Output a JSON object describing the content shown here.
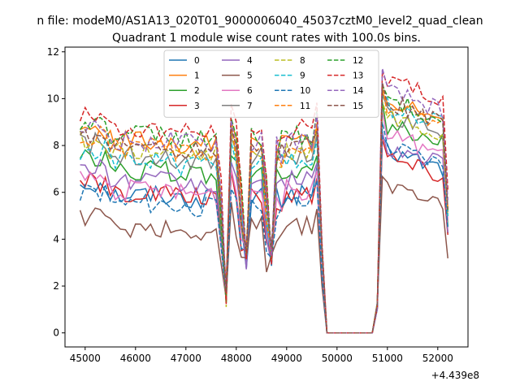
{
  "figure": {
    "suptitle": "n file: modeM0/AS1A13_020T01_9000006040_45037cztM0_level2_quad_clean",
    "title": "Quadrant 1 module wise count rates with 100.0s bins."
  },
  "chart_data": {
    "type": "line",
    "title": "Quadrant 1 module wise count rates with 100.0s bins.",
    "xlabel": "",
    "ylabel": "",
    "x_offset_label": "+4.439e8",
    "xlim": [
      44600,
      52600
    ],
    "ylim": [
      -0.6,
      12.2
    ],
    "x_ticks": [
      45000,
      46000,
      47000,
      48000,
      49000,
      50000,
      51000,
      52000
    ],
    "x_tick_labels": [
      "45000",
      "46000",
      "47000",
      "48000",
      "49000",
      "50000",
      "51000",
      "52000"
    ],
    "y_ticks": [
      0,
      2,
      4,
      6,
      8,
      10,
      12
    ],
    "y_tick_labels": [
      "0",
      "2",
      "4",
      "6",
      "8",
      "10",
      "12"
    ],
    "grid": false,
    "legend": {
      "placement": "top-center",
      "columns": 4
    },
    "time_start": 44900,
    "time_step": 100,
    "n_points": 74,
    "gap_start_index": 49,
    "gap_end_index": 58,
    "dip_indices": [
      29,
      33,
      38
    ],
    "series": [
      {
        "name": "0",
        "color": "#1f77b4",
        "dash": "solid",
        "base": 5.9,
        "post": 7.1
      },
      {
        "name": "1",
        "color": "#ff7f0e",
        "dash": "solid",
        "base": 8.2,
        "post": 9.2
      },
      {
        "name": "2",
        "color": "#2ca02c",
        "dash": "solid",
        "base": 6.9,
        "post": 8.2
      },
      {
        "name": "3",
        "color": "#d62728",
        "dash": "solid",
        "base": 5.9,
        "post": 6.8
      },
      {
        "name": "4",
        "color": "#9467bd",
        "dash": "solid",
        "base": 6.5,
        "post": 7.3
      },
      {
        "name": "5",
        "color": "#8c564b",
        "dash": "solid",
        "base": 4.5,
        "post": 5.6
      },
      {
        "name": "6",
        "color": "#e377c2",
        "dash": "solid",
        "base": 6.1,
        "post": 7.8
      },
      {
        "name": "7",
        "color": "#7f7f7f",
        "dash": "solid",
        "base": 7.6,
        "post": 8.7
      },
      {
        "name": "8",
        "color": "#bcbd22",
        "dash": "dashed",
        "base": 7.7,
        "post": 8.6
      },
      {
        "name": "9",
        "color": "#17becf",
        "dash": "dashed",
        "base": 7.3,
        "post": 9.0
      },
      {
        "name": "10",
        "color": "#1f77b4",
        "dash": "dashed",
        "base": 5.5,
        "post": 7.3
      },
      {
        "name": "11",
        "color": "#ff7f0e",
        "dash": "dashed",
        "base": 7.9,
        "post": 9.0
      },
      {
        "name": "12",
        "color": "#2ca02c",
        "dash": "dashed",
        "base": 8.4,
        "post": 9.3
      },
      {
        "name": "13",
        "color": "#d62728",
        "dash": "dashed",
        "base": 8.7,
        "post": 10.1
      },
      {
        "name": "14",
        "color": "#9467bd",
        "dash": "dashed",
        "base": 8.2,
        "post": 9.6
      },
      {
        "name": "15",
        "color": "#8c564b",
        "dash": "dashed",
        "base": 8.0,
        "post": 9.2
      }
    ]
  }
}
